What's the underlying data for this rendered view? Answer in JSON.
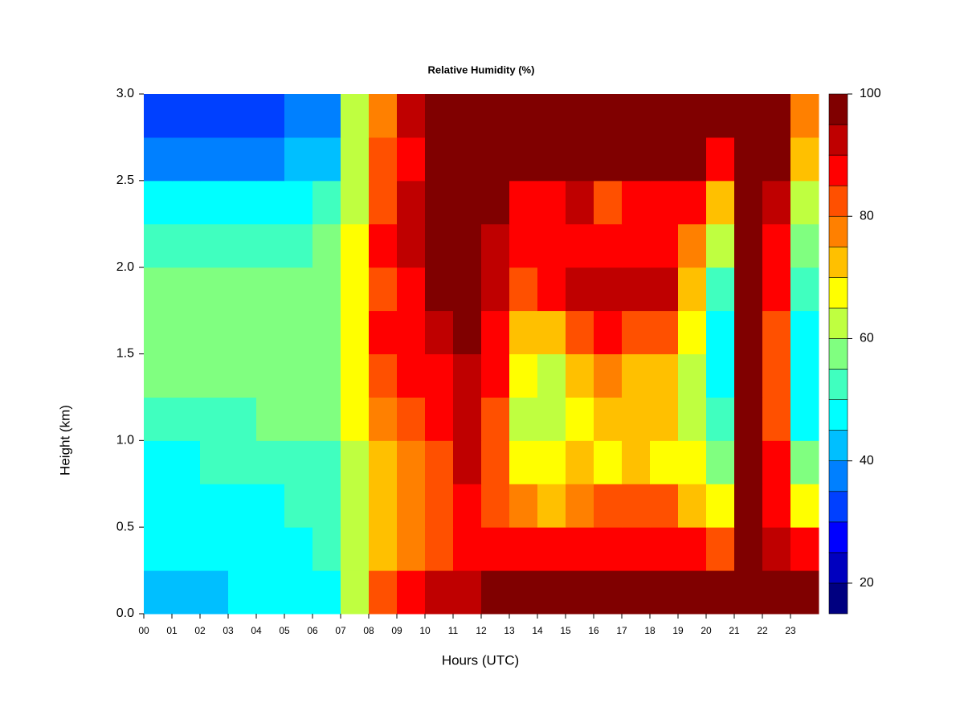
{
  "chart_data": {
    "type": "heatmap",
    "title": "Relative Humidity (%)",
    "x_label": "Hours (UTC)",
    "y_label": "Height (km)",
    "x": [
      0.5,
      1.5,
      2.5,
      3.5,
      4.5,
      5.5,
      6.5,
      7.5,
      8.5,
      9.5,
      10.5,
      11.5,
      12.5,
      13.5,
      14.5,
      15.5,
      16.5,
      17.5,
      18.5,
      19.5,
      20.5,
      21.5,
      22.5,
      23.5
    ],
    "y": [
      0.125,
      0.375,
      0.625,
      0.875,
      1.125,
      1.375,
      1.625,
      1.875,
      2.125,
      2.375,
      2.625,
      2.875
    ],
    "z": [
      [
        40,
        42,
        42,
        46,
        47,
        46,
        47,
        62,
        80,
        85,
        90,
        93,
        96,
        98,
        98,
        98,
        98,
        98,
        98,
        98,
        98,
        98,
        98,
        96
      ],
      [
        48,
        48,
        48,
        48,
        48,
        48,
        50,
        62,
        72,
        78,
        82,
        88,
        88,
        85,
        85,
        86,
        86,
        86,
        86,
        88,
        82,
        96,
        92,
        86
      ],
      [
        45,
        46,
        47,
        48,
        49,
        50,
        52,
        63,
        70,
        75,
        80,
        88,
        82,
        75,
        72,
        78,
        84,
        82,
        80,
        72,
        66,
        98,
        85,
        65
      ],
      [
        48,
        48,
        50,
        50,
        52,
        52,
        54,
        64,
        73,
        78,
        83,
        90,
        80,
        67,
        68,
        70,
        68,
        70,
        68,
        65,
        55,
        96,
        85,
        55
      ],
      [
        52,
        52,
        53,
        53,
        55,
        55,
        56,
        66,
        78,
        82,
        86,
        92,
        82,
        62,
        62,
        66,
        72,
        72,
        70,
        62,
        50,
        95,
        82,
        48
      ],
      [
        55,
        55,
        56,
        56,
        57,
        57,
        58,
        68,
        83,
        85,
        88,
        93,
        85,
        65,
        62,
        70,
        75,
        70,
        70,
        60,
        45,
        95,
        82,
        45
      ],
      [
        57,
        57,
        57,
        57,
        58,
        58,
        59,
        68,
        85,
        87,
        92,
        95,
        88,
        70,
        72,
        80,
        85,
        82,
        80,
        66,
        45,
        96,
        82,
        45
      ],
      [
        57,
        57,
        57,
        56,
        56,
        57,
        58,
        67,
        83,
        88,
        96,
        98,
        92,
        80,
        85,
        93,
        93,
        92,
        92,
        72,
        52,
        98,
        85,
        50
      ],
      [
        52,
        53,
        52,
        52,
        52,
        53,
        55,
        66,
        85,
        92,
        98,
        98,
        93,
        85,
        85,
        88,
        88,
        88,
        88,
        78,
        62,
        98,
        88,
        55
      ],
      [
        45,
        45,
        45,
        45,
        46,
        47,
        50,
        64,
        83,
        92,
        98,
        98,
        95,
        88,
        88,
        90,
        82,
        88,
        88,
        88,
        72,
        98,
        92,
        62
      ],
      [
        38,
        37,
        38,
        37,
        38,
        40,
        42,
        62,
        80,
        88,
        98,
        98,
        98,
        95,
        95,
        98,
        98,
        98,
        98,
        98,
        88,
        98,
        95,
        70
      ],
      [
        33,
        32,
        32,
        31,
        33,
        35,
        37,
        60,
        78,
        90,
        98,
        98,
        98,
        98,
        98,
        98,
        98,
        98,
        98,
        98,
        98,
        98,
        96,
        75
      ]
    ],
    "xlim": [
      0,
      24
    ],
    "ylim": [
      0,
      3
    ],
    "xticks": [
      {
        "value": 0,
        "label": "00"
      },
      {
        "value": 1,
        "label": "01"
      },
      {
        "value": 2,
        "label": "02"
      },
      {
        "value": 3,
        "label": "03"
      },
      {
        "value": 4,
        "label": "04"
      },
      {
        "value": 5,
        "label": "05"
      },
      {
        "value": 6,
        "label": "06"
      },
      {
        "value": 7,
        "label": "07"
      },
      {
        "value": 8,
        "label": "08"
      },
      {
        "value": 9,
        "label": "09"
      },
      10,
      11,
      12,
      13,
      14,
      15,
      16,
      17,
      18,
      19,
      20,
      21,
      22,
      23
    ],
    "yticks": [
      {
        "value": 0,
        "label": "0.0"
      },
      0.5,
      {
        "value": 1,
        "label": "1.0"
      },
      1.5,
      {
        "value": 2,
        "label": "2.0"
      },
      2.5,
      {
        "value": 3,
        "label": "3.0"
      }
    ],
    "levels": [
      15,
      20,
      25,
      30,
      35,
      40,
      45,
      50,
      55,
      60,
      65,
      70,
      75,
      80,
      85,
      90,
      95,
      100
    ],
    "colors": [
      "#000080",
      "#0000bf",
      "#0000ff",
      "#0040ff",
      "#0080ff",
      "#00bfff",
      "#00ffff",
      "#40ffbf",
      "#80ff80",
      "#bfff40",
      "#ffff00",
      "#ffc000",
      "#ff8000",
      "#ff5000",
      "#ff0000",
      "#bf0000",
      "#800000"
    ],
    "colorbar_ticks": [
      20,
      40,
      60,
      80,
      100
    ]
  }
}
